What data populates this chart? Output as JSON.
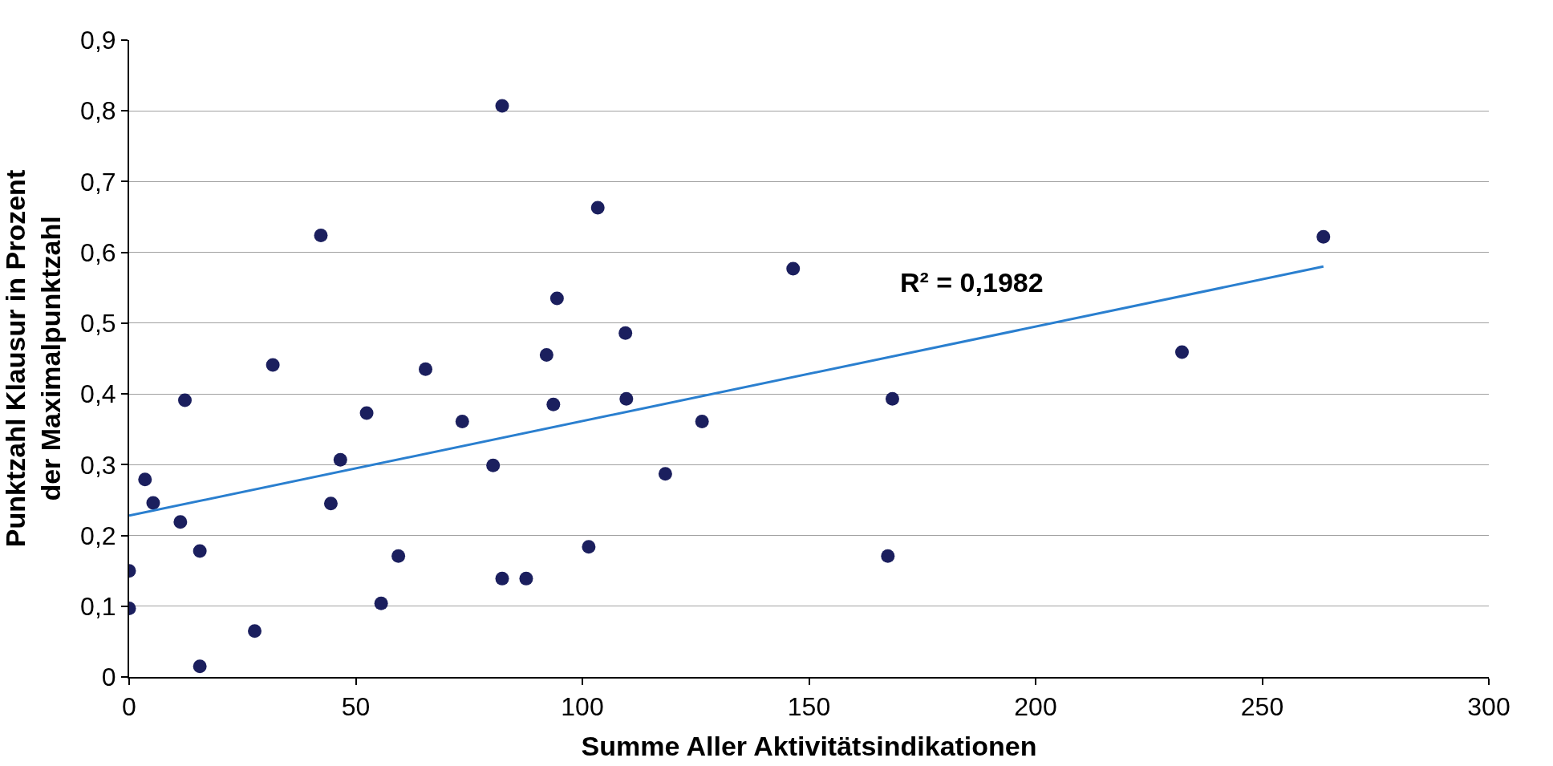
{
  "chart_data": {
    "type": "scatter",
    "xlabel": "Summe Aller Aktivitätsindikationen",
    "ylabel": "Punktzahl Klausur in Prozent\nder Maximalpunktzahl",
    "series": [
      {
        "color": "#1b1f5e",
        "marker": "circle",
        "x": [
          0,
          0,
          3.5,
          5.3,
          11.3,
          12.3,
          15.6,
          15.6,
          27.7,
          31.7,
          42.3,
          44.5,
          46.6,
          52.4,
          55.6,
          59.4,
          65.4,
          73.5,
          80.3,
          82.3,
          82.3,
          87.6,
          92.1,
          93.6,
          94.4,
          101.4,
          103.4,
          109.5,
          109.7,
          118.3,
          126.4,
          146.5,
          167.4,
          168.4,
          232.3,
          263.5
        ],
        "values": [
          0.15,
          0.097,
          0.279,
          0.246,
          0.219,
          0.391,
          0.178,
          0.015,
          0.065,
          0.441,
          0.624,
          0.245,
          0.307,
          0.373,
          0.104,
          0.171,
          0.435,
          0.361,
          0.299,
          0.807,
          0.139,
          0.139,
          0.455,
          0.385,
          0.535,
          0.184,
          0.663,
          0.486,
          0.393,
          0.287,
          0.361,
          0.577,
          0.171,
          0.393,
          0.459,
          0.622
        ]
      },
      {
        "type": "line",
        "marker": "none",
        "color": "#2a7fcf",
        "x": [
          0,
          263.5
        ],
        "values": [
          0.228,
          0.58
        ]
      }
    ],
    "annotations": [
      "R² = 0,1982"
    ],
    "xlim": [
      0,
      300
    ],
    "xticks": [
      0,
      50,
      100,
      150,
      200,
      250,
      300
    ],
    "ylim": [
      0,
      0.9
    ],
    "yticks": [
      0,
      {
        "value": 0.1,
        "label": "0,1"
      },
      {
        "value": 0.2,
        "label": "0,2"
      },
      {
        "value": 0.3,
        "label": "0,3"
      },
      {
        "value": 0.4,
        "label": "0,4"
      },
      {
        "value": 0.5,
        "label": "0,5"
      },
      {
        "value": 0.6,
        "label": "0,6"
      },
      {
        "value": 0.7,
        "label": "0,7"
      },
      {
        "value": 0.8,
        "label": "0,8"
      },
      {
        "value": 0.9,
        "label": "0,9"
      }
    ],
    "grid": "y",
    "line_style": "solid"
  }
}
